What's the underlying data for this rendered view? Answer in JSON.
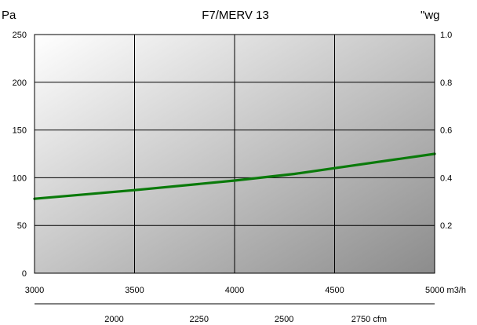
{
  "chart_data": {
    "type": "line",
    "title": "F7/MERV 13",
    "left_unit": "Pa",
    "right_unit": "\"wg",
    "colors": {
      "series": "#0a7a0a",
      "grid": "#000000"
    },
    "y_left": {
      "min": 0,
      "max": 250,
      "ticks": [
        "0",
        "50",
        "100",
        "150",
        "200",
        "250"
      ]
    },
    "y_right": {
      "min": 0.0,
      "max": 1.0,
      "ticks": [
        "0.2",
        "0.4",
        "0.6",
        "0.8",
        "1.0"
      ]
    },
    "x_primary": {
      "min": 3000,
      "max": 5000,
      "ticks": [
        "3000",
        "3500",
        "4000",
        "4500",
        "5000 m3/h"
      ]
    },
    "x_secondary": {
      "ticks": [
        "2000",
        "2250",
        "2500",
        "2750 cfm"
      ],
      "values": [
        2000,
        2250,
        2500,
        2750
      ]
    },
    "series": [
      {
        "x": [
          3000,
          3500,
          4000,
          4300,
          4500,
          5000
        ],
        "y": [
          78,
          87,
          97,
          104,
          110,
          125
        ]
      }
    ],
    "grid": true
  }
}
